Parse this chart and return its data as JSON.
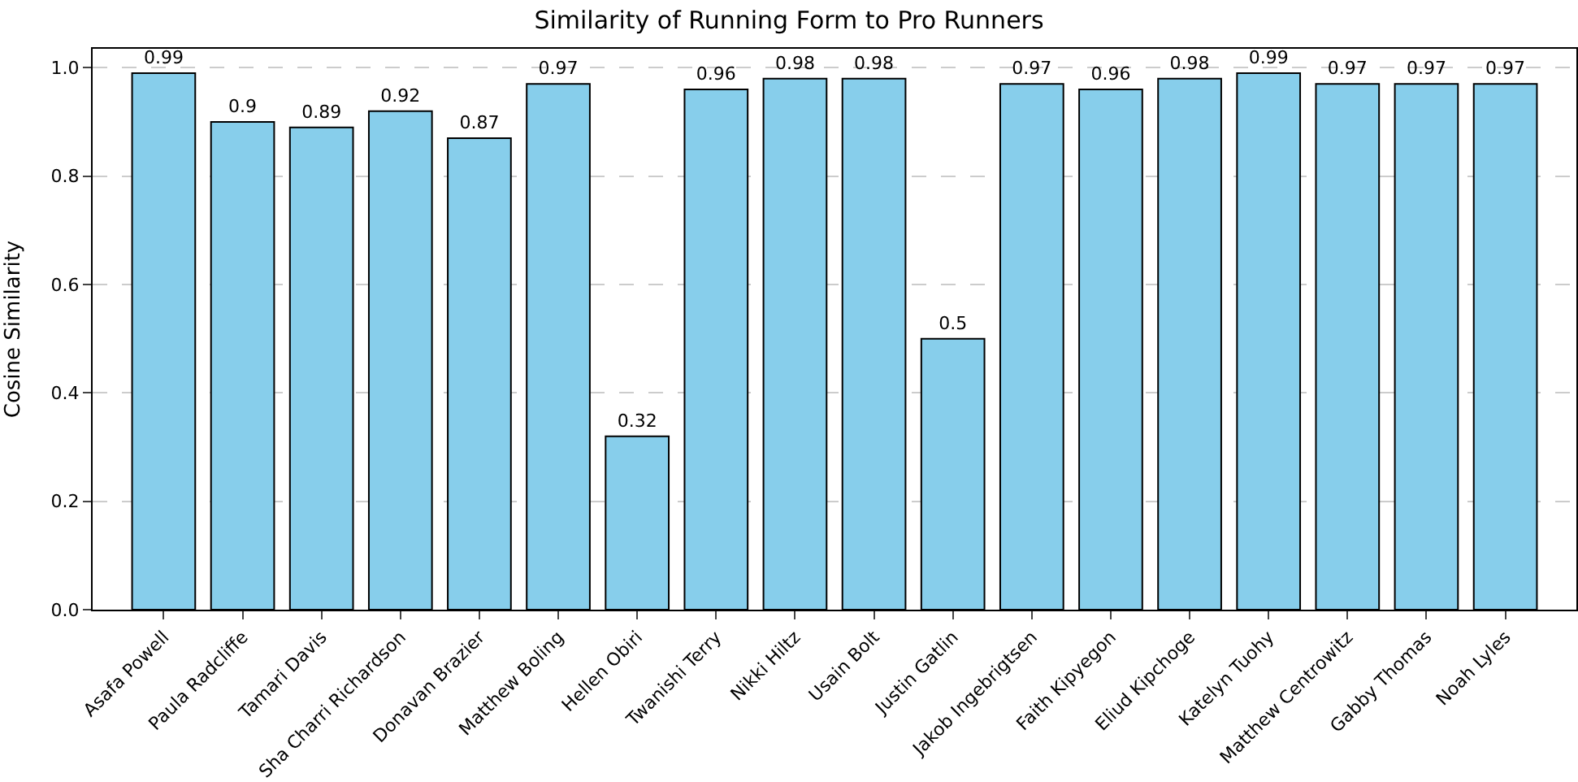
{
  "chart_data": {
    "type": "bar",
    "title": "Similarity of Running Form to Pro Runners",
    "ylabel": "Cosine Similarity",
    "categories": [
      "Asafa Powell",
      "Paula Radcliffe",
      "Tamari Davis",
      "Sha Charri Richardson",
      "Donavan Brazier",
      "Matthew Boling",
      "Hellen Obiri",
      "Twanishi Terry",
      "Nikki Hiltz",
      "Usain Bolt",
      "Justin Gatlin",
      "Jakob Ingebrigtsen",
      "Faith Kipyegon",
      "Eliud Kipchoge",
      "Katelyn Tuohy",
      "Matthew Centrowitz",
      "Gabby Thomas",
      "Noah Lyles"
    ],
    "values": [
      0.99,
      0.9,
      0.89,
      0.92,
      0.87,
      0.97,
      0.32,
      0.96,
      0.98,
      0.98,
      0.5,
      0.97,
      0.96,
      0.98,
      0.99,
      0.97,
      0.97,
      0.97
    ],
    "color": "#87ceeb",
    "data_labels": true,
    "ylim": [
      0,
      1.035
    ],
    "yticks": [
      {
        "value": 0,
        "label": "0.0"
      },
      {
        "value": 0.2,
        "label": "0.2"
      },
      {
        "value": 0.4,
        "label": "0.4"
      },
      {
        "value": 0.6,
        "label": "0.6"
      },
      {
        "value": 0.8,
        "label": "0.8"
      },
      {
        "value": 1.0,
        "label": "1.0"
      }
    ],
    "grid": "y"
  }
}
